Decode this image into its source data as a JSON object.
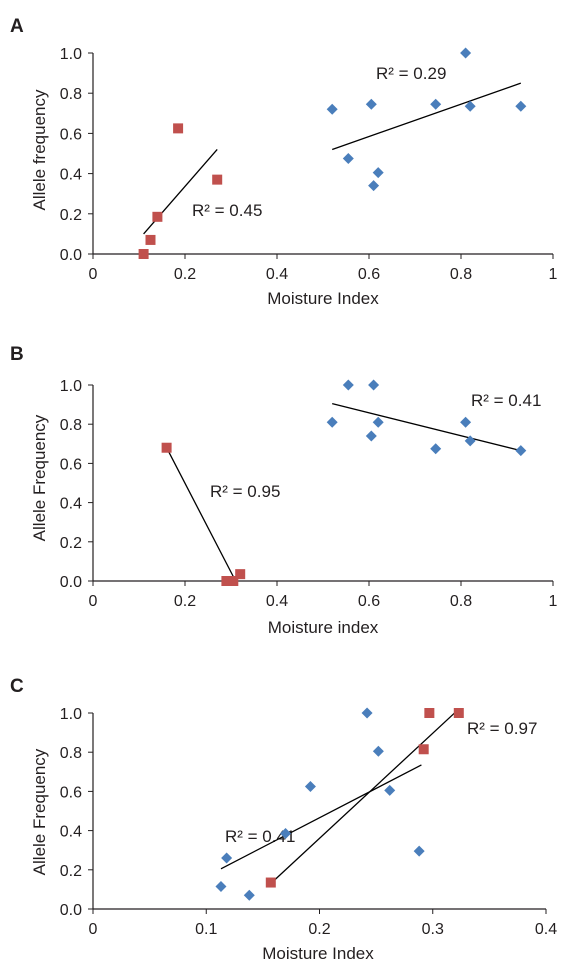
{
  "colors": {
    "series_blue": "#4a7ebb",
    "series_red": "#c0504d",
    "axis": "#231f20",
    "trendline": "#000000"
  },
  "chart_data": [
    {
      "panel": "A",
      "type": "scatter",
      "xlabel": "Moisture Index",
      "ylabel": "Allele frequency",
      "xlim": [
        0,
        1
      ],
      "ylim": [
        0,
        1
      ],
      "x_ticks": [
        "0",
        "0.2",
        "0.4",
        "0.6",
        "0.8",
        "1"
      ],
      "y_ticks": [
        "0.0",
        "0.2",
        "0.4",
        "0.6",
        "0.8",
        "1.0"
      ],
      "grid": false,
      "legend": "none",
      "series": [
        {
          "marker": "diamond",
          "color": "#4a7ebb",
          "points": [
            [
              0.52,
              0.72
            ],
            [
              0.555,
              0.475
            ],
            [
              0.605,
              0.745
            ],
            [
              0.61,
              0.34
            ],
            [
              0.62,
              0.405
            ],
            [
              0.745,
              0.745
            ],
            [
              0.81,
              1.0
            ],
            [
              0.82,
              0.735
            ],
            [
              0.93,
              0.735
            ]
          ],
          "trendline": {
            "x": [
              0.52,
              0.93
            ],
            "y": [
              0.52,
              0.85
            ]
          },
          "r2_label": "R² = 0.29"
        },
        {
          "marker": "square",
          "color": "#c0504d",
          "points": [
            [
              0.11,
              0.0
            ],
            [
              0.125,
              0.07
            ],
            [
              0.14,
              0.185
            ],
            [
              0.185,
              0.625
            ],
            [
              0.27,
              0.37
            ]
          ],
          "trendline": {
            "x": [
              0.11,
              0.27
            ],
            "y": [
              0.1,
              0.52
            ]
          },
          "r2_label": "R² = 0.45"
        }
      ]
    },
    {
      "panel": "B",
      "type": "scatter",
      "xlabel": "Moisture index",
      "ylabel": "Allele Frequency",
      "xlim": [
        0,
        1
      ],
      "ylim": [
        0,
        1
      ],
      "x_ticks": [
        "0",
        "0.2",
        "0.4",
        "0.6",
        "0.8",
        "1"
      ],
      "y_ticks": [
        "0.0",
        "0.2",
        "0.4",
        "0.6",
        "0.8",
        "1.0"
      ],
      "grid": false,
      "legend": "none",
      "series": [
        {
          "marker": "diamond",
          "color": "#4a7ebb",
          "points": [
            [
              0.52,
              0.81
            ],
            [
              0.555,
              1.0
            ],
            [
              0.605,
              0.74
            ],
            [
              0.61,
              1.0
            ],
            [
              0.62,
              0.81
            ],
            [
              0.745,
              0.675
            ],
            [
              0.81,
              0.81
            ],
            [
              0.82,
              0.715
            ],
            [
              0.93,
              0.665
            ]
          ],
          "trendline": {
            "x": [
              0.52,
              0.93
            ],
            "y": [
              0.905,
              0.665
            ]
          },
          "r2_label": "R² = 0.41"
        },
        {
          "marker": "square",
          "color": "#c0504d",
          "points": [
            [
              0.16,
              0.68
            ],
            [
              0.29,
              0.0
            ],
            [
              0.305,
              0.0
            ],
            [
              0.32,
              0.035
            ]
          ],
          "trendline": {
            "x": [
              0.16,
              0.31
            ],
            "y": [
              0.68,
              0.0
            ]
          },
          "r2_label": "R² = 0.95"
        }
      ]
    },
    {
      "panel": "C",
      "type": "scatter",
      "xlabel": "Moisture Index",
      "ylabel": "Allele Frequency",
      "xlim": [
        0,
        0.4
      ],
      "ylim": [
        0,
        1
      ],
      "x_ticks": [
        "0",
        "0.1",
        "0.2",
        "0.3",
        "0.4"
      ],
      "y_ticks": [
        "0.0",
        "0.2",
        "0.4",
        "0.6",
        "0.8",
        "1.0"
      ],
      "grid": false,
      "legend": "none",
      "series": [
        {
          "marker": "diamond",
          "color": "#4a7ebb",
          "points": [
            [
              0.113,
              0.115
            ],
            [
              0.118,
              0.26
            ],
            [
              0.138,
              0.07
            ],
            [
              0.17,
              0.385
            ],
            [
              0.192,
              0.625
            ],
            [
              0.242,
              1.0
            ],
            [
              0.252,
              0.805
            ],
            [
              0.262,
              0.605
            ],
            [
              0.288,
              0.295
            ]
          ],
          "trendline": {
            "x": [
              0.113,
              0.29
            ],
            "y": [
              0.205,
              0.735
            ]
          },
          "r2_label": "R² = 0.41"
        },
        {
          "marker": "square",
          "color": "#c0504d",
          "points": [
            [
              0.157,
              0.135
            ],
            [
              0.292,
              0.815
            ],
            [
              0.297,
              1.0
            ],
            [
              0.323,
              1.0
            ]
          ],
          "trendline": {
            "x": [
              0.157,
              0.323
            ],
            "y": [
              0.13,
              1.02
            ]
          },
          "r2_label": "R² = 0.97"
        }
      ]
    }
  ]
}
